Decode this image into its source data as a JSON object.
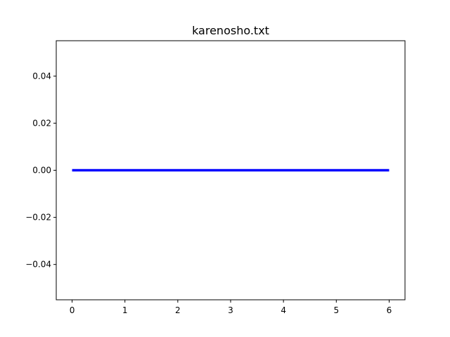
{
  "chart_data": {
    "type": "line",
    "title": "karenosho.txt",
    "xlabel": "",
    "ylabel": "",
    "x": [
      0,
      1,
      2,
      3,
      4,
      5,
      6
    ],
    "series": [
      {
        "values": [
          0,
          0,
          0,
          0,
          0,
          0,
          0
        ],
        "color": "#0000ff"
      }
    ],
    "xlim": [
      -0.3,
      6.3
    ],
    "ylim": [
      -0.055,
      0.055
    ],
    "xticks": [
      0,
      1,
      2,
      3,
      4,
      5,
      6
    ],
    "xtick_labels": [
      "0",
      "1",
      "2",
      "3",
      "4",
      "5",
      "6"
    ],
    "yticks": [
      0.04,
      0.02,
      0.0,
      -0.02,
      -0.04
    ],
    "ytick_labels": [
      "0.04",
      "0.02",
      "0.00",
      "−0.02",
      "−0.04"
    ],
    "grid": false,
    "legend": "none"
  }
}
